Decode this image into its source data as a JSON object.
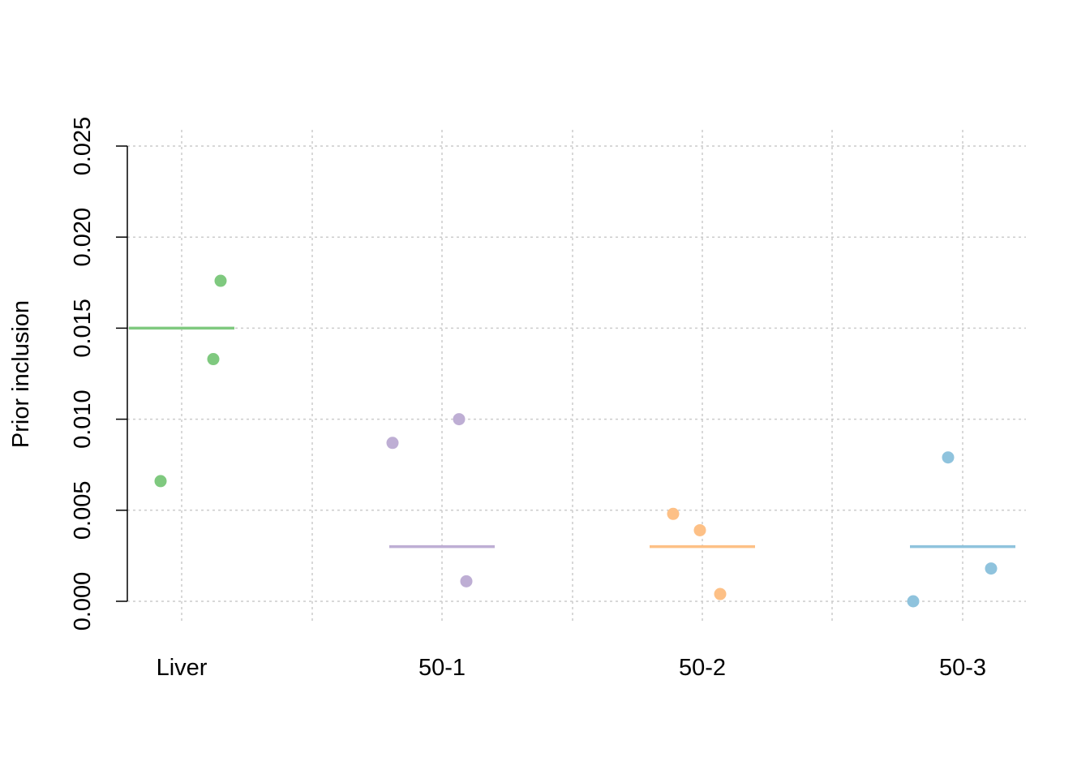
{
  "chart_data": {
    "type": "scatter",
    "title": "",
    "xlabel": "",
    "ylabel": "Prior inclusion",
    "ylim": [
      0,
      0.025
    ],
    "yticks": [
      "0.000",
      "0.005",
      "0.010",
      "0.015",
      "0.020",
      "0.025"
    ],
    "grid": true,
    "categories": [
      "Liver",
      "50-1",
      "50-2",
      "50-3"
    ],
    "groups": [
      {
        "category": "Liver",
        "color": "#7fc97f",
        "line": 0.015,
        "points": [
          0.0066,
          0.0133,
          0.0176
        ]
      },
      {
        "category": "50-1",
        "color": "#beaed4",
        "line": 0.003,
        "points": [
          0.0087,
          0.01,
          0.0011
        ]
      },
      {
        "category": "50-2",
        "color": "#fdc086",
        "line": 0.003,
        "points": [
          0.0048,
          0.0039,
          0.0004
        ]
      },
      {
        "category": "50-3",
        "color": "#8fc3dd",
        "line": 0.003,
        "points": [
          0.0,
          0.0079,
          0.0018
        ]
      }
    ]
  }
}
